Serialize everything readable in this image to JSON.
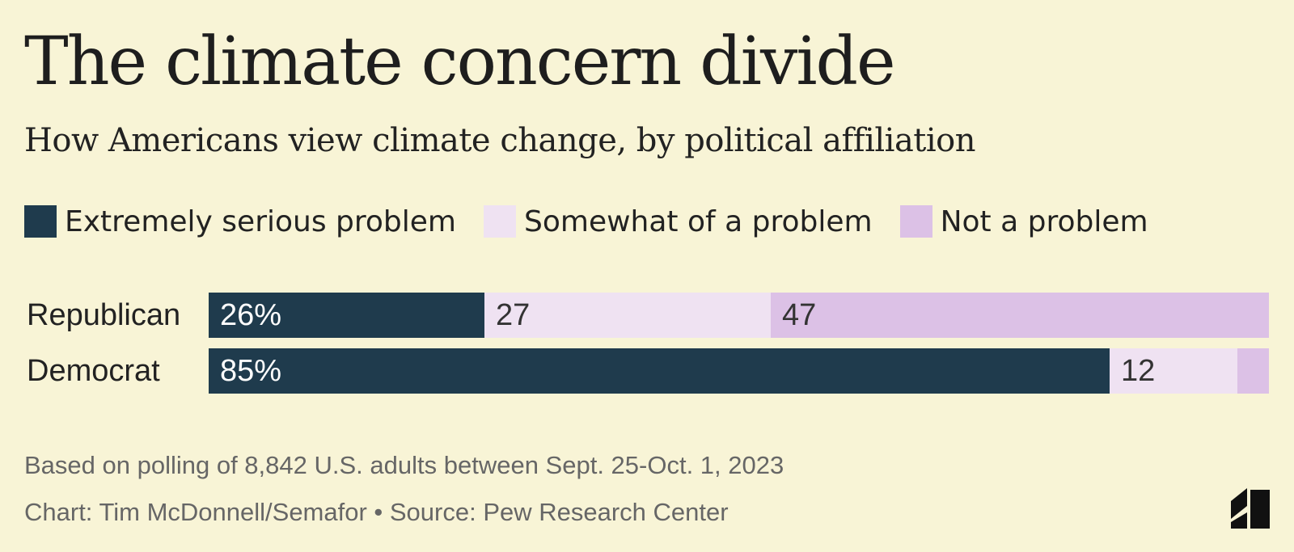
{
  "colors": {
    "background": "#f8f4d6",
    "extremely": "#1f3b4d",
    "somewhat": "#efe2f2",
    "not": "#dcc1e6"
  },
  "chart_data": {
    "type": "bar",
    "orientation": "horizontal",
    "stacked": true,
    "title": "The climate concern divide",
    "subtitle": "How Americans view climate change, by political affiliation",
    "categories": [
      "Republican",
      "Democrat"
    ],
    "series": [
      {
        "name": "Extremely serious problem",
        "values": [
          26,
          85
        ],
        "labels": [
          "26%",
          "85%"
        ],
        "color": "#1f3b4d",
        "text_color": "#ffffff"
      },
      {
        "name": "Somewhat of a problem",
        "values": [
          27,
          12
        ],
        "labels": [
          "27",
          "12"
        ],
        "color": "#efe2f2",
        "text_color": "#333333"
      },
      {
        "name": "Not a problem",
        "values": [
          47,
          3
        ],
        "labels": [
          "47",
          ""
        ],
        "color": "#dcc1e6",
        "text_color": "#333333"
      }
    ],
    "xlim": [
      0,
      100
    ],
    "legend_position": "top-left",
    "grid": false
  },
  "footer": {
    "note": "Based on polling of 8,842 U.S. adults between Sept. 25-Oct. 1, 2023",
    "credit": "Chart: Tim McDonnell/Semafor • Source: Pew Research Center"
  },
  "logo": {
    "icon": "semafor-logo-icon"
  }
}
